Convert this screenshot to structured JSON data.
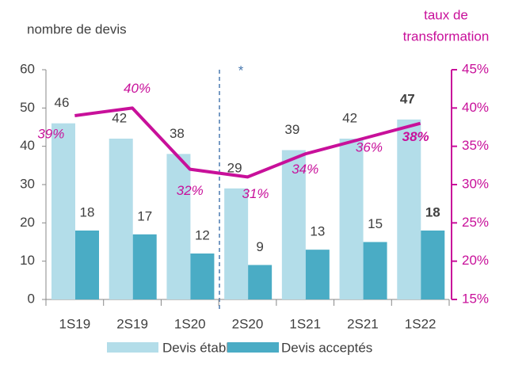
{
  "chart_data": {
    "type": "bar_line",
    "ylabel": "nombre de devis",
    "y2label": [
      "taux de",
      "transformation"
    ],
    "annotations": [
      "*"
    ],
    "categories": [
      "1S19",
      "2S19",
      "1S20",
      "2S20",
      "1S21",
      "2S21",
      "1S22"
    ],
    "series": [
      {
        "name": "Devis établis",
        "color": "#b3dde9",
        "type": "bar",
        "values": [
          46,
          42,
          38,
          29,
          39,
          42,
          47
        ]
      },
      {
        "name": "Devis acceptés",
        "color": "#4aacc5",
        "type": "bar",
        "values": [
          18,
          17,
          12,
          9,
          13,
          15,
          18
        ]
      },
      {
        "color": "#c8109a",
        "type": "line",
        "axis": "y2",
        "values": [
          39,
          40,
          32,
          31,
          34,
          36,
          38
        ],
        "value_labels": [
          "39%",
          "40%",
          "32%",
          "31%",
          "34%",
          "36%",
          "38%"
        ]
      }
    ],
    "ylim": [
      0,
      60
    ],
    "yticks": [
      0,
      10,
      20,
      30,
      40,
      50,
      60
    ],
    "y2lim": [
      15,
      45
    ],
    "y2ticks": [
      {
        "value": 15,
        "label": "15%"
      },
      {
        "value": 20,
        "label": "20%"
      },
      {
        "value": 25,
        "label": "25%"
      },
      {
        "value": 30,
        "label": "30%"
      },
      {
        "value": 35,
        "label": "35%"
      },
      {
        "value": 40,
        "label": "40%"
      },
      {
        "value": 45,
        "label": "45%"
      }
    ],
    "legend": "bottom"
  }
}
